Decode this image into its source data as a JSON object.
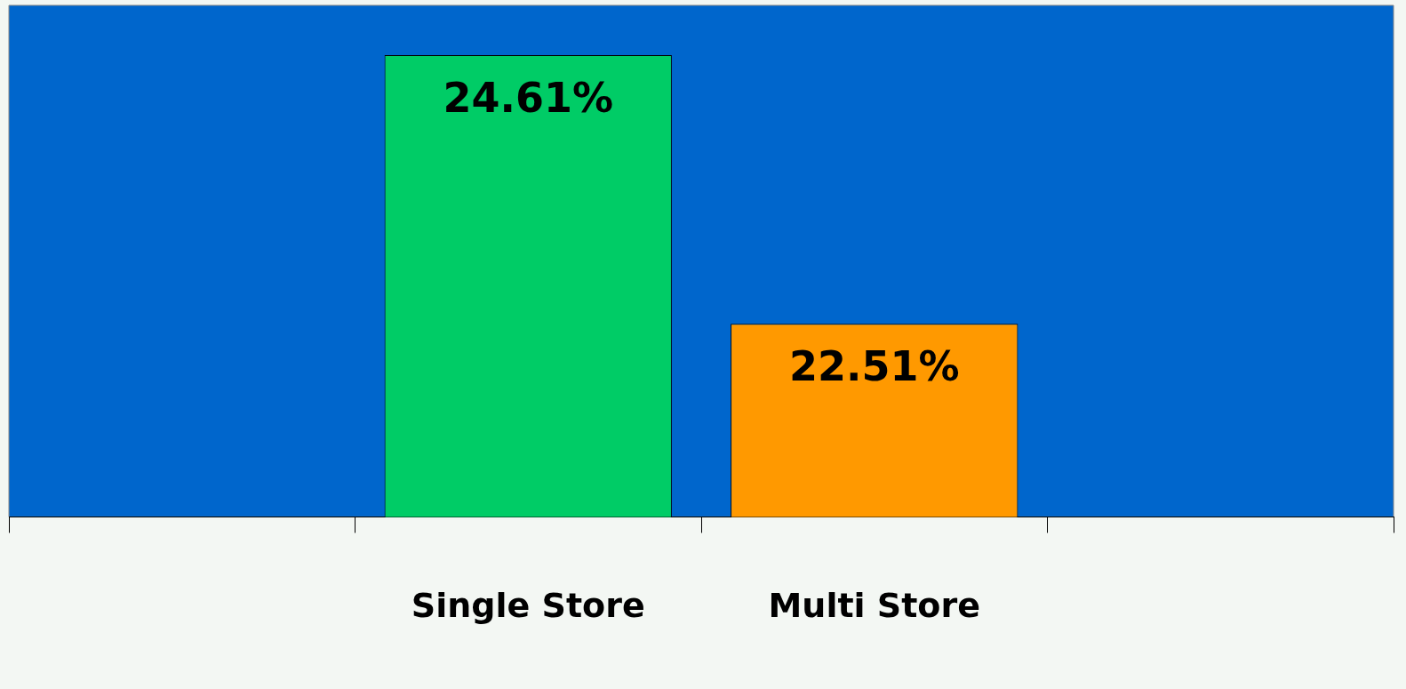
{
  "chart_data": {
    "type": "bar",
    "categories": [
      null,
      "Single Store",
      "Multi Store",
      null
    ],
    "values": [
      null,
      24.61,
      22.51,
      null
    ],
    "colors": [
      "#00cc66",
      "#00cc66",
      "#ff9900",
      "#ff9900"
    ],
    "value_labels": [
      null,
      "24.61%",
      "22.51%",
      null
    ],
    "ylim": [
      21,
      25
    ],
    "tick_labels": "x",
    "grid": false,
    "legend": false
  }
}
